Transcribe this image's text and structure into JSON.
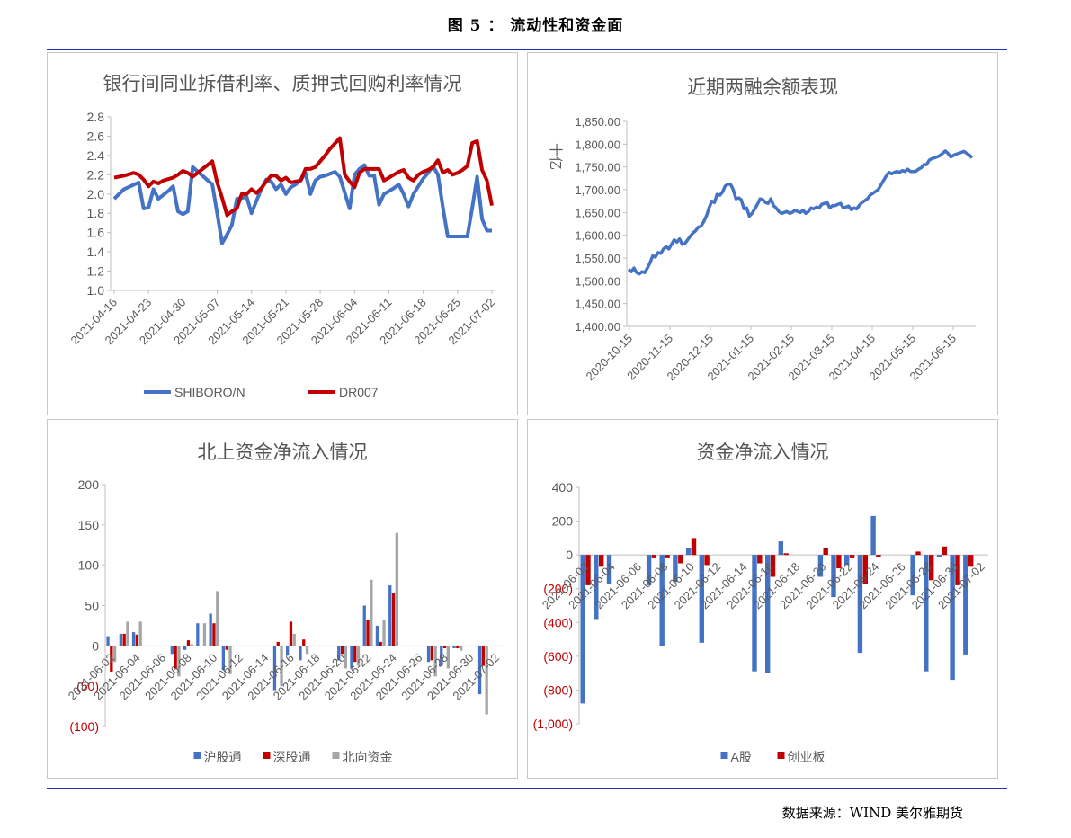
{
  "figure": {
    "title": "图 5 ：  流动性和资金面",
    "source": "数据来源：WIND  美尔雅期货"
  },
  "chart_data": [
    {
      "type": "line",
      "title": "银行间同业拆借利率、质押式回购利率情况",
      "xlabel": "",
      "ylabel": "",
      "ylim": [
        1.0,
        2.8
      ],
      "yticks": [
        "2.8",
        "2.6",
        "2.4",
        "2.2",
        "2.0",
        "1.8",
        "1.6",
        "1.4",
        "1.2",
        "1.0"
      ],
      "xticks": [
        "2021-04-16",
        "2021-04-23",
        "2021-04-30",
        "2021-05-07",
        "2021-05-14",
        "2021-05-21",
        "2021-05-28",
        "2021-06-04",
        "2021-06-11",
        "2021-06-18",
        "2021-06-25",
        "2021-07-02"
      ],
      "grid": false,
      "legend": "bottom",
      "series": [
        {
          "name": "SHIBORO/N",
          "color": "#4472c4",
          "x": [
            0,
            2,
            5,
            6,
            7,
            8,
            9,
            11,
            12,
            13,
            14,
            15,
            16,
            20,
            21,
            22,
            23,
            24,
            25,
            26,
            27,
            28,
            29,
            30,
            31,
            32,
            33,
            34,
            35,
            36,
            37,
            38,
            39,
            40,
            41,
            42,
            43,
            44,
            45,
            46,
            48,
            49,
            50,
            51,
            52,
            53,
            54,
            55,
            56,
            57,
            58,
            59,
            60,
            61,
            62,
            63,
            64,
            65,
            66,
            67,
            68,
            70,
            71,
            72,
            73,
            74,
            75,
            76,
            77
          ],
          "y": [
            1.95,
            2.05,
            2.12,
            1.85,
            1.86,
            2.05,
            1.95,
            2.03,
            2.08,
            1.82,
            1.79,
            1.82,
            2.28,
            2.1,
            1.8,
            1.49,
            1.58,
            1.68,
            1.95,
            1.96,
            1.97,
            1.8,
            1.93,
            2.05,
            2.15,
            2.13,
            2.05,
            2.1,
            2.0,
            2.07,
            2.1,
            2.14,
            2.22,
            2.0,
            2.14,
            2.18,
            2.19,
            2.21,
            2.23,
            2.18,
            1.85,
            2.2,
            2.26,
            2.3,
            2.19,
            2.19,
            1.89,
            2.0,
            2.03,
            2.06,
            2.1,
            2.0,
            1.87,
            2.0,
            2.08,
            2.16,
            2.22,
            2.29,
            2.2,
            1.86,
            1.56,
            1.56,
            1.56,
            1.56,
            1.86,
            2.18,
            1.74,
            1.62,
            1.62
          ]
        },
        {
          "name": "DR007",
          "color": "#c00000",
          "x": [
            0,
            2,
            4,
            5,
            6,
            7,
            8,
            9,
            10,
            12,
            13,
            14,
            15,
            16,
            20,
            21,
            22,
            23,
            24,
            25,
            26,
            27,
            28,
            29,
            30,
            31,
            32,
            33,
            34,
            35,
            36,
            37,
            38,
            39,
            40,
            41,
            43,
            44,
            46,
            47,
            48,
            49,
            50,
            51,
            53,
            54,
            55,
            56,
            57,
            58,
            59,
            60,
            61,
            62,
            63,
            64,
            65,
            66,
            67,
            68,
            69,
            70,
            71,
            72,
            73,
            74,
            75,
            76,
            77
          ],
          "y": [
            2.17,
            2.19,
            2.22,
            2.2,
            2.15,
            2.08,
            2.13,
            2.11,
            2.14,
            2.17,
            2.2,
            2.24,
            2.22,
            2.18,
            2.34,
            2.12,
            1.96,
            1.78,
            1.82,
            1.85,
            2.0,
            2.0,
            2.05,
            2.01,
            2.06,
            2.13,
            2.19,
            2.19,
            2.14,
            2.17,
            2.12,
            2.13,
            2.14,
            2.26,
            2.26,
            2.28,
            2.4,
            2.47,
            2.58,
            2.2,
            2.13,
            2.07,
            2.22,
            2.26,
            2.26,
            2.26,
            2.14,
            2.17,
            2.2,
            2.23,
            2.25,
            2.17,
            2.14,
            2.2,
            2.23,
            2.25,
            2.28,
            2.35,
            2.22,
            2.25,
            2.2,
            2.22,
            2.25,
            2.29,
            2.53,
            2.55,
            2.25,
            2.14,
            1.88
          ]
        }
      ]
    },
    {
      "type": "line",
      "title": "近期两融余额表现",
      "xlabel": "",
      "ylabel": "十亿",
      "ylim": [
        1400,
        1850
      ],
      "yticks": [
        "1,850.00",
        "1,800.00",
        "1,750.00",
        "1,700.00",
        "1,650.00",
        "1,600.00",
        "1,550.00",
        "1,500.00",
        "1,450.00",
        "1,400.00"
      ],
      "xticks": [
        "2020-10-15",
        "2020-11-15",
        "2020-12-15",
        "2021-01-15",
        "2021-02-15",
        "2021-03-15",
        "2021-04-15",
        "2021-05-15",
        "2021-06-15"
      ],
      "grid": false,
      "series": [
        {
          "name": "",
          "color": "#4472c4",
          "x": [
            0,
            2,
            4,
            6,
            8,
            10,
            12,
            14,
            16,
            18,
            20,
            22,
            24,
            26,
            28,
            30,
            32,
            34,
            36,
            38,
            40,
            42,
            44,
            46,
            48,
            50,
            52,
            54,
            56,
            58,
            60,
            62,
            64,
            66,
            68,
            70,
            72,
            74,
            76,
            78,
            79,
            80,
            82,
            84,
            86,
            88,
            90,
            92,
            94,
            96,
            98,
            100,
            102,
            104,
            106,
            108,
            110,
            112,
            114,
            116,
            118,
            120,
            122,
            124,
            126,
            128,
            130,
            132,
            134,
            136,
            138,
            140,
            142,
            144,
            146,
            148,
            150,
            152,
            154,
            156,
            158,
            160,
            162,
            164,
            166,
            168,
            170,
            172,
            174,
            176,
            178,
            180,
            182,
            184,
            186,
            188,
            190,
            192,
            194,
            196,
            198,
            200,
            202,
            204,
            206,
            208,
            210,
            212,
            214,
            216,
            218,
            220,
            222,
            224,
            226,
            228,
            230,
            232,
            234,
            236,
            238,
            240,
            242,
            244,
            246,
            248,
            250,
            252,
            254,
            256
          ],
          "y": [
            1525,
            1520,
            1528,
            1518,
            1515,
            1520,
            1518,
            1528,
            1540,
            1555,
            1552,
            1562,
            1560,
            1570,
            1575,
            1570,
            1580,
            1590,
            1585,
            1592,
            1580,
            1582,
            1590,
            1598,
            1605,
            1610,
            1618,
            1620,
            1630,
            1642,
            1660,
            1675,
            1672,
            1690,
            1688,
            1695,
            1708,
            1712,
            1712,
            1700,
            1690,
            1680,
            1682,
            1678,
            1658,
            1660,
            1642,
            1648,
            1658,
            1668,
            1680,
            1678,
            1672,
            1670,
            1680,
            1665,
            1660,
            1652,
            1648,
            1650,
            1652,
            1648,
            1650,
            1655,
            1652,
            1650,
            1655,
            1648,
            1652,
            1660,
            1658,
            1662,
            1660,
            1668,
            1670,
            1672,
            1660,
            1665,
            1665,
            1668,
            1670,
            1660,
            1662,
            1664,
            1656,
            1660,
            1658,
            1666,
            1672,
            1676,
            1680,
            1688,
            1692,
            1696,
            1700,
            1710,
            1720,
            1730,
            1738,
            1735,
            1738,
            1740,
            1738,
            1742,
            1740,
            1745,
            1740,
            1740,
            1740,
            1745,
            1748,
            1755,
            1755,
            1765,
            1768,
            1770,
            1772,
            1775,
            1780,
            1785,
            1780,
            1772,
            1775,
            1778,
            1780,
            1782,
            1784,
            1780,
            1776,
            1770
          ]
        }
      ]
    },
    {
      "type": "bar",
      "title": "北上资金净流入情况",
      "ylim": [
        -100,
        200
      ],
      "yticks": [
        "200",
        "150",
        "100",
        "50",
        "0",
        "(50)",
        "(100)"
      ],
      "xticks": [
        "2021-06-02",
        "2021-06-04",
        "2021-06-06",
        "2021-06-08",
        "2021-06-10",
        "2021-06-12",
        "2021-06-14",
        "2021-06-16",
        "2021-06-18",
        "2021-06-20",
        "2021-06-22",
        "2021-06-24",
        "2021-06-26",
        "2021-06-28",
        "2021-06-30",
        "2021-07-02"
      ],
      "legend": "bottom",
      "categories": [
        "2021-06-02",
        "2021-06-03",
        "2021-06-04",
        "2021-06-05",
        "2021-06-06",
        "2021-06-07",
        "2021-06-08",
        "2021-06-09",
        "2021-06-10",
        "2021-06-11",
        "2021-06-12",
        "2021-06-13",
        "2021-06-14",
        "2021-06-15",
        "2021-06-16",
        "2021-06-17",
        "2021-06-18",
        "2021-06-19",
        "2021-06-20",
        "2021-06-21",
        "2021-06-22",
        "2021-06-23",
        "2021-06-24",
        "2021-06-25",
        "2021-06-26",
        "2021-06-27",
        "2021-06-28",
        "2021-06-29",
        "2021-06-30",
        "2021-07-01",
        "2021-07-02"
      ],
      "series": [
        {
          "name": "沪股通",
          "color": "#4472c4",
          "values": [
            12,
            15,
            17,
            0,
            0,
            -10,
            -5,
            28,
            40,
            -30,
            0,
            0,
            0,
            -55,
            -12,
            -18,
            0,
            0,
            -18,
            -28,
            50,
            25,
            75,
            0,
            0,
            -20,
            -25,
            -3,
            0,
            -60,
            0
          ]
        },
        {
          "name": "深股通",
          "color": "#c00000",
          "values": [
            -32,
            15,
            14,
            0,
            0,
            -28,
            7,
            0,
            28,
            -5,
            0,
            0,
            0,
            5,
            30,
            8,
            0,
            0,
            -10,
            -20,
            32,
            5,
            65,
            0,
            0,
            -18,
            -3,
            -3,
            0,
            -25,
            0
          ]
        },
        {
          "name": "北向资金",
          "color": "#a5a5a5",
          "values": [
            -20,
            30,
            30,
            0,
            0,
            -38,
            2,
            28,
            68,
            -35,
            0,
            0,
            0,
            -50,
            15,
            -10,
            0,
            0,
            -28,
            -25,
            82,
            32,
            140,
            0,
            0,
            -38,
            -28,
            -6,
            0,
            -85,
            0
          ]
        }
      ]
    },
    {
      "type": "bar",
      "title": "资金净流入情况",
      "ylim": [
        -1000,
        400
      ],
      "yticks": [
        "400",
        "200",
        "0",
        "(200)",
        "(400)",
        "(600)",
        "(800)",
        "(1,000)"
      ],
      "xticks": [
        "2021-06-02",
        "2021-06-04",
        "2021-06-06",
        "2021-06-08",
        "2021-06-10",
        "2021-06-12",
        "2021-06-14",
        "2021-06-16",
        "2021-06-18",
        "2021-06-20",
        "2021-06-22",
        "2021-06-24",
        "2021-06-26",
        "2021-06-28",
        "2021-06-30",
        "2021-07-02"
      ],
      "legend": "bottom",
      "categories": [
        "2021-06-02",
        "2021-06-03",
        "2021-06-04",
        "2021-06-05",
        "2021-06-06",
        "2021-06-07",
        "2021-06-08",
        "2021-06-09",
        "2021-06-10",
        "2021-06-11",
        "2021-06-12",
        "2021-06-13",
        "2021-06-14",
        "2021-06-15",
        "2021-06-16",
        "2021-06-17",
        "2021-06-18",
        "2021-06-19",
        "2021-06-20",
        "2021-06-21",
        "2021-06-22",
        "2021-06-23",
        "2021-06-24",
        "2021-06-25",
        "2021-06-26",
        "2021-06-27",
        "2021-06-28",
        "2021-06-29",
        "2021-06-30",
        "2021-07-01",
        "2021-07-02"
      ],
      "series": [
        {
          "name": "A股",
          "color": "#4472c4",
          "values": [
            -880,
            -380,
            -170,
            0,
            0,
            -180,
            -540,
            -160,
            40,
            -520,
            0,
            0,
            0,
            -690,
            -700,
            80,
            0,
            0,
            -130,
            -250,
            -60,
            -580,
            230,
            0,
            0,
            -240,
            -690,
            -10,
            -740,
            -590,
            0
          ]
        },
        {
          "name": "创业板",
          "color": "#c00000",
          "values": [
            -180,
            -70,
            0,
            0,
            0,
            -20,
            -20,
            -50,
            100,
            -60,
            0,
            0,
            0,
            -50,
            -130,
            10,
            0,
            0,
            40,
            -80,
            -20,
            -170,
            -10,
            0,
            0,
            20,
            -150,
            50,
            -180,
            -70,
            0
          ]
        }
      ]
    }
  ]
}
